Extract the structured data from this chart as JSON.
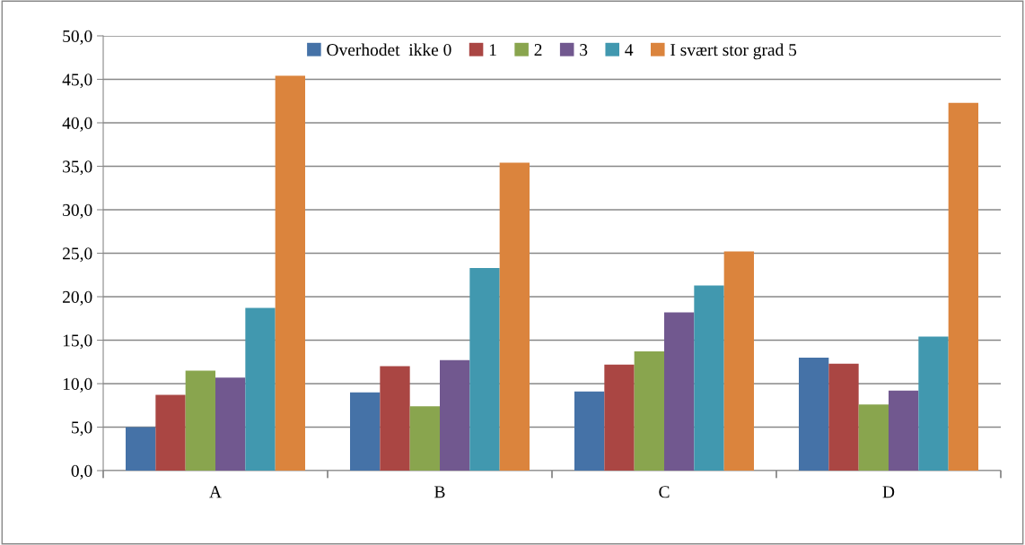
{
  "chart_data": {
    "type": "bar",
    "categories": [
      "A",
      "B",
      "C",
      "D"
    ],
    "series": [
      {
        "name": "Overhodet  ikke 0",
        "color": "#4572a7",
        "values": [
          5.0,
          9.0,
          9.1,
          13.0
        ]
      },
      {
        "name": "1",
        "color": "#aa4643",
        "values": [
          8.7,
          12.0,
          12.2,
          12.3
        ]
      },
      {
        "name": "2",
        "color": "#89a54e",
        "values": [
          11.5,
          7.4,
          13.7,
          7.6
        ]
      },
      {
        "name": "3",
        "color": "#71588f",
        "values": [
          10.7,
          12.7,
          18.2,
          9.2
        ]
      },
      {
        "name": "4",
        "color": "#4198af",
        "values": [
          18.7,
          23.3,
          21.3,
          15.4
        ]
      },
      {
        "name": "I svært stor grad 5",
        "color": "#db843d",
        "values": [
          45.4,
          35.4,
          25.2,
          42.3
        ]
      }
    ],
    "ylim": [
      0,
      50
    ],
    "yticks": [
      {
        "value": 0,
        "label": "0,0"
      },
      {
        "value": 5,
        "label": "5,0"
      },
      {
        "value": 10,
        "label": "10,0"
      },
      {
        "value": 15,
        "label": "15,0"
      },
      {
        "value": 20,
        "label": "20,0"
      },
      {
        "value": 25,
        "label": "25,0"
      },
      {
        "value": 30,
        "label": "30,0"
      },
      {
        "value": 35,
        "label": "35,0"
      },
      {
        "value": 40,
        "label": "40,0"
      },
      {
        "value": 45,
        "label": "45,0"
      },
      {
        "value": 50,
        "label": "50,0"
      }
    ],
    "grid": "y",
    "legend": "top"
  }
}
